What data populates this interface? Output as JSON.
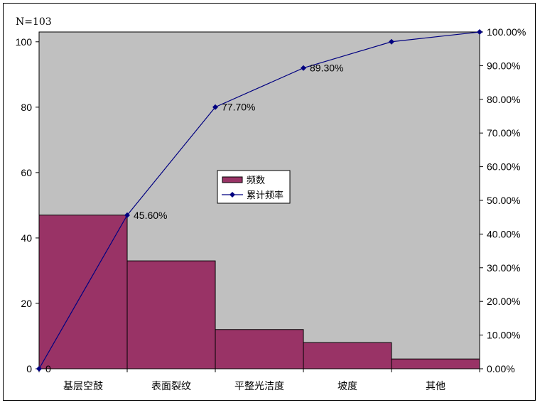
{
  "chart_data": {
    "type": "bar",
    "n_label": "N=103",
    "categories": [
      "基层空鼓",
      "表面裂纹",
      "平整光洁度",
      "坡度",
      "其他"
    ],
    "series": [
      {
        "name": "频数",
        "type": "bar",
        "axis": "left",
        "values": [
          47,
          33,
          12,
          8,
          3
        ],
        "color": "#993366"
      },
      {
        "name": "累计频率",
        "type": "line",
        "axis": "right",
        "x": [
          0,
          1,
          2,
          3,
          4,
          5
        ],
        "values": [
          0,
          45.6,
          77.7,
          89.3,
          97.1,
          100.0
        ],
        "color": "#000080"
      }
    ],
    "point_labels": [
      "0",
      "45.60%",
      "77.70%",
      "89.30%",
      "",
      ""
    ],
    "y_left": {
      "min": 0,
      "max": 103,
      "ticks": [
        "0",
        "20",
        "40",
        "60",
        "80",
        "100"
      ],
      "tick_values": [
        0,
        20,
        40,
        60,
        80,
        100
      ]
    },
    "y_right": {
      "min": 0,
      "max": 100,
      "ticks": [
        "0.00%",
        "10.00%",
        "20.00%",
        "30.00%",
        "40.00%",
        "50.00%",
        "60.00%",
        "70.00%",
        "80.00%",
        "90.00%",
        "100.00%"
      ]
    },
    "plot_background": "#c0c0c0",
    "legend": {
      "position": "center",
      "items": [
        "频数",
        "累计频率"
      ]
    }
  }
}
